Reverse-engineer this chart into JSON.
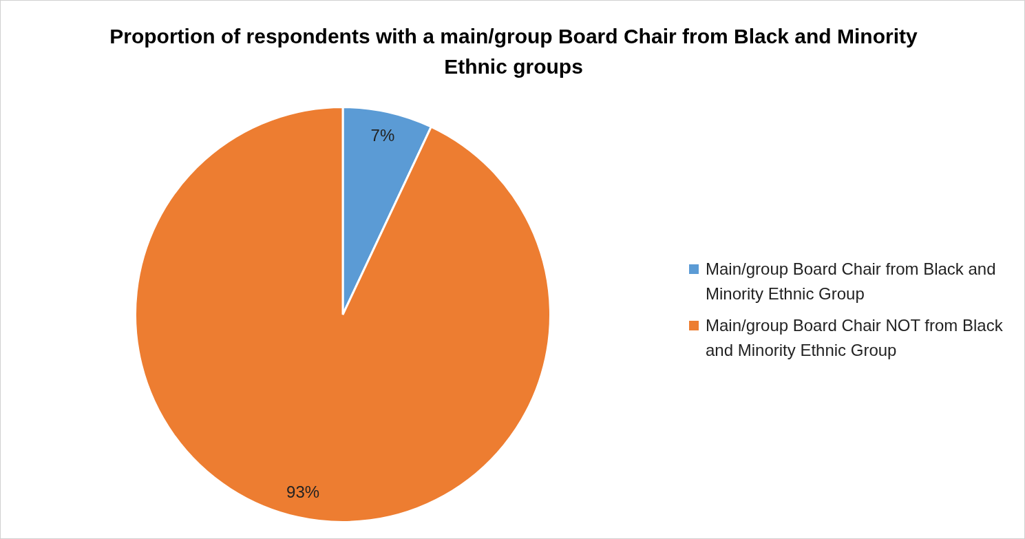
{
  "chart_data": {
    "type": "pie",
    "title": "Proportion of respondents with a main/group Board Chair from Black and Minority Ethnic groups",
    "categories": [
      "Main/group Board Chair from Black and Minority Ethnic Group",
      "Main/group Board Chair NOT from Black and Minority Ethnic Group"
    ],
    "values": [
      7,
      93
    ],
    "colors": [
      "#5b9bd5",
      "#ed7d31"
    ],
    "value_labels": [
      "7%",
      "93%"
    ],
    "legend": "right"
  }
}
